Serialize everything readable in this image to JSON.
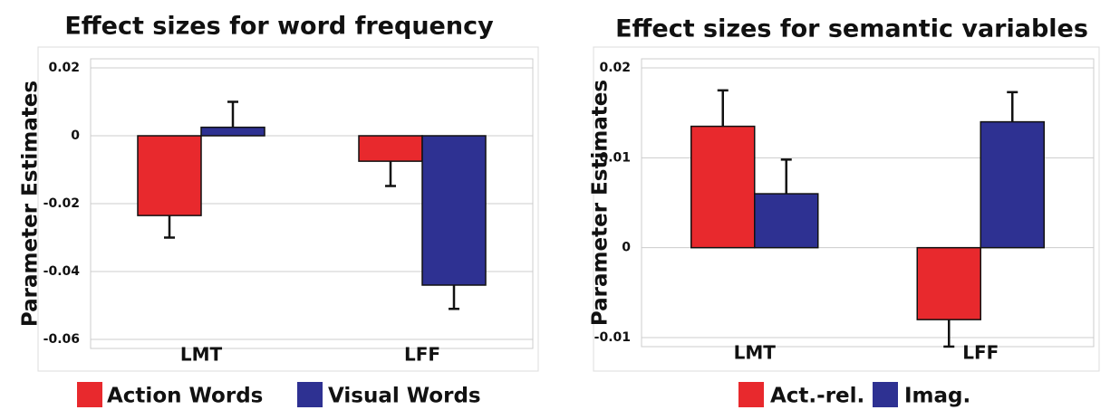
{
  "chart_data": [
    {
      "type": "bar",
      "title": "Effect sizes for word frequency",
      "y_label": "Parameter Estimates",
      "categories": [
        "LMT",
        "LFF"
      ],
      "series": [
        {
          "name": "Action Words",
          "color": "#e8292d",
          "values": [
            -0.0235,
            -0.0075
          ],
          "errors": [
            0.0065,
            0.0073
          ]
        },
        {
          "name": "Visual Words",
          "color": "#2e3192",
          "values": [
            0.0025,
            -0.044
          ],
          "errors": [
            0.0075,
            0.007
          ]
        }
      ],
      "ylim": [
        -0.06,
        0.02
      ],
      "yticks": [
        -0.06,
        -0.04,
        -0.02,
        0,
        0.02
      ],
      "grid": true,
      "legend": "bottom"
    },
    {
      "type": "bar",
      "title": "Effect sizes for semantic variables",
      "y_label": "Parameter Estimates",
      "categories": [
        "LMT",
        "LFF"
      ],
      "series": [
        {
          "name": "Act.-rel.",
          "color": "#e8292d",
          "values": [
            0.0135,
            -0.008
          ],
          "errors": [
            0.004,
            0.003
          ]
        },
        {
          "name": "Imag.",
          "color": "#2e3192",
          "values": [
            0.006,
            0.014
          ],
          "errors": [
            0.0038,
            0.0033
          ]
        }
      ],
      "ylim": [
        -0.01,
        0.02
      ],
      "yticks": [
        -0.01,
        0,
        0.01,
        0.02
      ],
      "grid": true,
      "legend": "bottom"
    }
  ]
}
